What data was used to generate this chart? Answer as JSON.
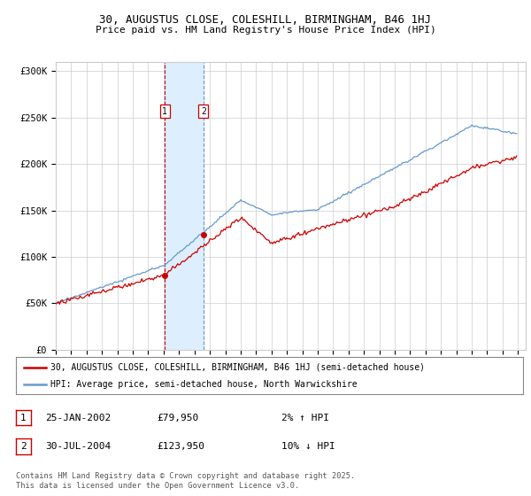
{
  "title1": "30, AUGUSTUS CLOSE, COLESHILL, BIRMINGHAM, B46 1HJ",
  "title2": "Price paid vs. HM Land Registry's House Price Index (HPI)",
  "y_ticks": [
    0,
    50000,
    100000,
    150000,
    200000,
    250000,
    300000
  ],
  "y_tick_labels": [
    "£0",
    "£50K",
    "£100K",
    "£150K",
    "£200K",
    "£250K",
    "£300K"
  ],
  "x_start_year": 1995,
  "x_end_year": 2025,
  "sale1_date": "25-JAN-2002",
  "sale1_price": 79950,
  "sale1_hpi": "2% ↑ HPI",
  "sale1_year": 2002.08,
  "sale2_date": "30-JUL-2004",
  "sale2_price": 123950,
  "sale2_hpi": "10% ↓ HPI",
  "sale2_year": 2004.58,
  "legend_label1": "30, AUGUSTUS CLOSE, COLESHILL, BIRMINGHAM, B46 1HJ (semi-detached house)",
  "legend_label2": "HPI: Average price, semi-detached house, North Warwickshire",
  "footer": "Contains HM Land Registry data © Crown copyright and database right 2025.\nThis data is licensed under the Open Government Licence v3.0.",
  "line_color_red": "#cc0000",
  "line_color_blue": "#6699cc",
  "highlight_color": "#ddeeff",
  "background_color": "#ffffff",
  "grid_color": "#cccccc",
  "ylim": [
    0,
    310000
  ],
  "xlim": [
    1995,
    2025.5
  ]
}
